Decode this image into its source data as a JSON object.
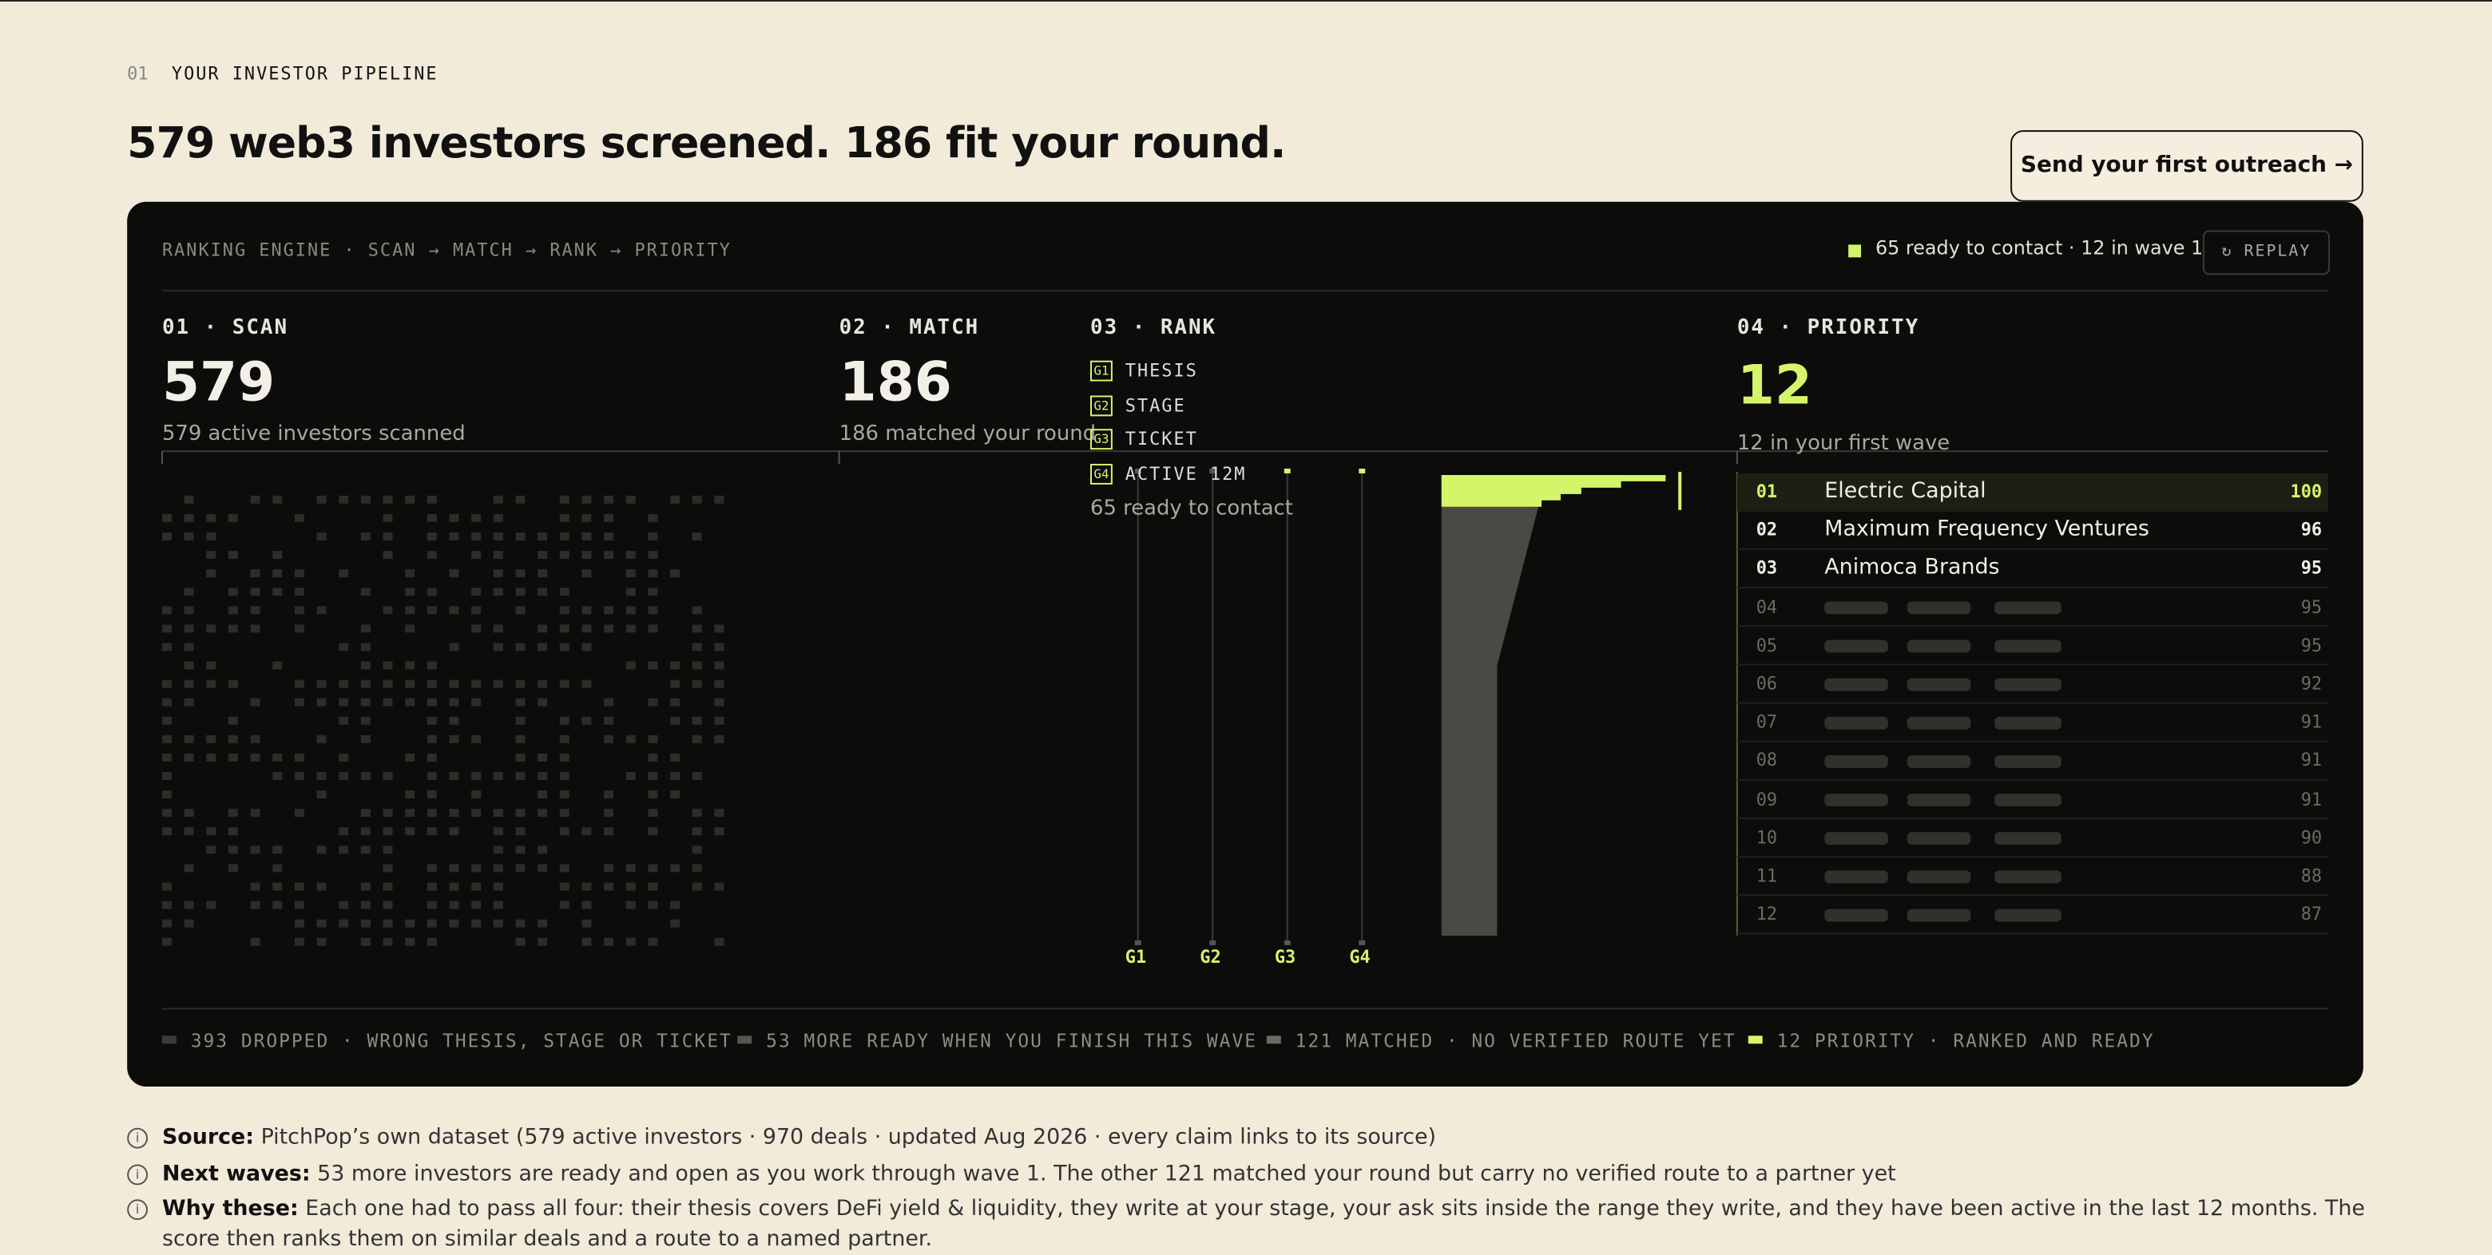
{
  "header": {
    "index": "01",
    "eyebrow": "YOUR INVESTOR PIPELINE",
    "title": "579 web3 investors screened. 186 fit your round.",
    "cta": "Send your first outreach →"
  },
  "panel": {
    "caption": "RANKING ENGINE · SCAN → MATCH → RANK → PRIORITY",
    "status": "65 ready to contact · 12 in wave 1",
    "replay": "REPLAY",
    "stages": [
      {
        "label": "01 · SCAN",
        "value": 579,
        "note": "579 active investors scanned"
      },
      {
        "label": "02 · MATCH",
        "value": 186,
        "note": "186 matched your round"
      },
      {
        "label": "03 · RANK",
        "note": "65 ready to contact"
      },
      {
        "label": "04 · PRIORITY",
        "value": 12,
        "note": "12 in your first wave"
      }
    ],
    "gates": [
      {
        "code": "G1",
        "label": "THESIS"
      },
      {
        "code": "G2",
        "label": "STAGE"
      },
      {
        "code": "G3",
        "label": "TICKET"
      },
      {
        "code": "G4",
        "label": "ACTIVE 12M"
      }
    ],
    "ranking": [
      {
        "rank": "01",
        "name": "Electric Capital",
        "score": 100
      },
      {
        "rank": "02",
        "name": "Maximum Frequency Ventures",
        "score": 96
      },
      {
        "rank": "03",
        "name": "Animoca Brands",
        "score": 95
      },
      {
        "rank": "04",
        "score": 95
      },
      {
        "rank": "05",
        "score": 95
      },
      {
        "rank": "06",
        "score": 92
      },
      {
        "rank": "07",
        "score": 91
      },
      {
        "rank": "08",
        "score": 91
      },
      {
        "rank": "09",
        "score": 91
      },
      {
        "rank": "10",
        "score": 90
      },
      {
        "rank": "11",
        "score": 88
      },
      {
        "rank": "12",
        "score": 87
      }
    ],
    "legend": [
      "393 DROPPED · WRONG THESIS, STAGE OR TICKET",
      "53 MORE READY WHEN YOU FINISH THIS WAVE",
      "121 MATCHED · NO VERIFIED ROUTE YET",
      "12 PRIORITY · RANKED AND READY"
    ]
  },
  "notes": [
    {
      "label": "Source:",
      "text": "PitchPop’s own dataset (579 active investors · 970 deals · updated Aug 2026 · every claim links to its source)"
    },
    {
      "label": "Next waves:",
      "text": "53 more investors are ready and open as you work through wave 1. The other 121 matched your round but carry no verified route to a partner yet"
    },
    {
      "label": "Why these:",
      "text": "Each one had to pass all four: their thesis covers DeFi yield & liquidity, they write at your stage, your ask sits inside the range they write, and they have been active in the last 12 months. The score then ranks them on similar deals and a route to a named partner."
    }
  ]
}
